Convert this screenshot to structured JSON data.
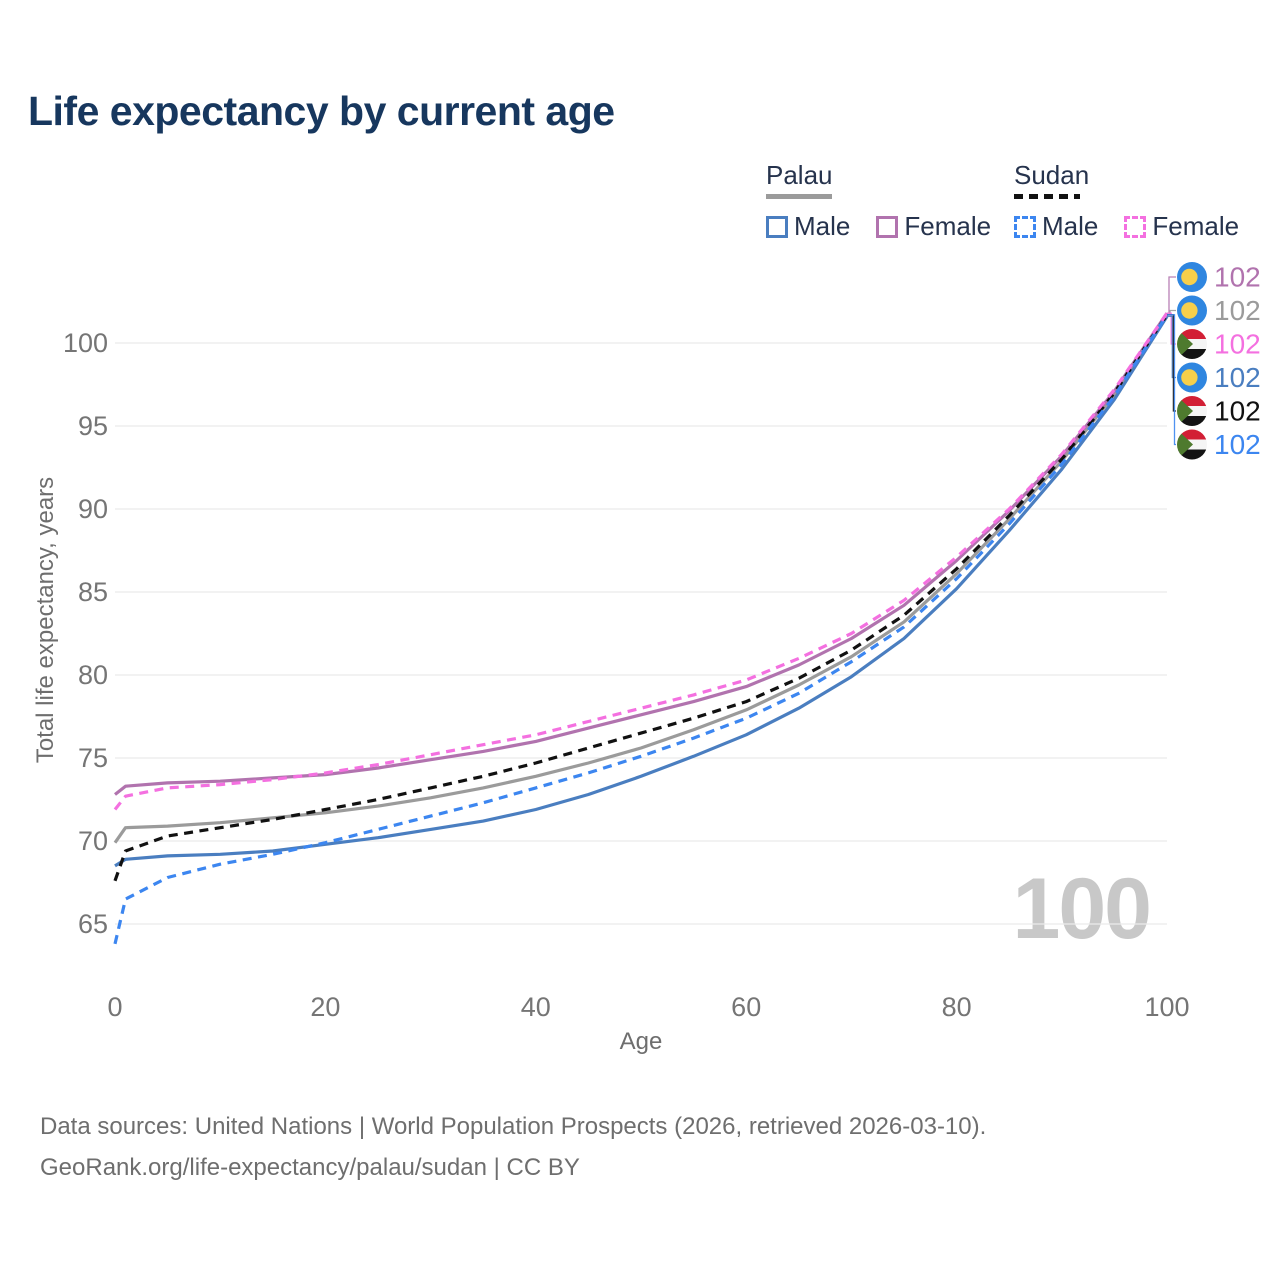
{
  "page": {
    "title": "Life expectancy by current age",
    "watermark": "100",
    "footer": [
      "Data sources: United Nations | World Population Prospects (2026, retrieved 2026-03-10).",
      "GeoRank.org/life-expectancy/palau/sudan | CC BY"
    ]
  },
  "legend": {
    "groups": [
      {
        "name": "Palau",
        "line_style": "solid",
        "underline_color": "#9b9b9b",
        "items": [
          {
            "label": "Male",
            "color": "#4a7ec0",
            "dashed": false
          },
          {
            "label": "Female",
            "color": "#b173ae",
            "dashed": false
          }
        ]
      },
      {
        "name": "Sudan",
        "line_style": "dashed",
        "underline_color": "#111111",
        "items": [
          {
            "label": "Male",
            "color": "#3c86f0",
            "dashed": true
          },
          {
            "label": "Female",
            "color": "#f470e0",
            "dashed": true
          }
        ]
      }
    ]
  },
  "chart_data": {
    "type": "line",
    "title": "Life expectancy by current age",
    "xlabel": "Age",
    "ylabel": "Total life expectancy, years",
    "xticks": [
      0,
      20,
      40,
      60,
      80,
      100
    ],
    "yticks": [
      65,
      70,
      75,
      80,
      85,
      90,
      95,
      100
    ],
    "xlim": [
      0,
      100
    ],
    "ylim": [
      63,
      103
    ],
    "grid": "horizontal-only",
    "legend_position": "top-right",
    "x": [
      0,
      1,
      5,
      10,
      15,
      20,
      25,
      30,
      35,
      40,
      45,
      50,
      55,
      60,
      65,
      70,
      75,
      80,
      85,
      90,
      95,
      100
    ],
    "series": [
      {
        "name": "Palau Both sexes",
        "country": "Palau",
        "sex": "Both",
        "color": "#9b9b9b",
        "dashed": false,
        "values": [
          69.9,
          70.8,
          70.9,
          71.1,
          71.4,
          71.7,
          72.1,
          72.6,
          73.2,
          73.9,
          74.7,
          75.6,
          76.7,
          77.9,
          79.4,
          81.1,
          83.2,
          86.1,
          89.4,
          92.9,
          96.9,
          101.7
        ]
      },
      {
        "name": "Palau Male",
        "country": "Palau",
        "sex": "Male",
        "color": "#4a7ec0",
        "dashed": false,
        "values": [
          68.5,
          68.9,
          69.1,
          69.2,
          69.4,
          69.8,
          70.2,
          70.7,
          71.2,
          71.9,
          72.8,
          73.9,
          75.1,
          76.4,
          78.0,
          79.9,
          82.2,
          85.2,
          88.7,
          92.4,
          96.6,
          101.6
        ]
      },
      {
        "name": "Palau Female",
        "country": "Palau",
        "sex": "Female",
        "color": "#b173ae",
        "dashed": false,
        "values": [
          72.8,
          73.3,
          73.5,
          73.6,
          73.8,
          74.0,
          74.4,
          74.9,
          75.4,
          76.0,
          76.8,
          77.6,
          78.4,
          79.3,
          80.6,
          82.2,
          84.2,
          86.9,
          89.9,
          93.2,
          97.1,
          101.8
        ]
      },
      {
        "name": "Sudan Both sexes",
        "country": "Sudan",
        "sex": "Both",
        "color": "#111111",
        "dashed": true,
        "values": [
          67.6,
          69.4,
          70.3,
          70.8,
          71.3,
          71.9,
          72.5,
          73.2,
          73.9,
          74.7,
          75.6,
          76.5,
          77.4,
          78.4,
          79.8,
          81.5,
          83.6,
          86.4,
          89.6,
          93.0,
          97.0,
          101.7
        ]
      },
      {
        "name": "Sudan Male",
        "country": "Sudan",
        "sex": "Male",
        "color": "#3c86f0",
        "dashed": true,
        "values": [
          63.8,
          66.5,
          67.8,
          68.6,
          69.2,
          69.9,
          70.7,
          71.5,
          72.3,
          73.2,
          74.1,
          75.1,
          76.2,
          77.4,
          78.9,
          80.8,
          82.9,
          85.8,
          89.1,
          92.7,
          96.8,
          101.7
        ]
      },
      {
        "name": "Sudan Female",
        "country": "Sudan",
        "sex": "Female",
        "color": "#f470e0",
        "dashed": true,
        "values": [
          71.9,
          72.7,
          73.2,
          73.4,
          73.7,
          74.1,
          74.6,
          75.2,
          75.8,
          76.4,
          77.2,
          78.0,
          78.8,
          79.7,
          81.0,
          82.5,
          84.5,
          87.1,
          90.0,
          93.3,
          97.2,
          101.8
        ]
      }
    ],
    "end_labels": [
      {
        "flag": "palau",
        "value": "102",
        "color": "#b173ae",
        "series": "Palau Female"
      },
      {
        "flag": "palau",
        "value": "102",
        "color": "#9b9b9b",
        "series": "Palau Both sexes"
      },
      {
        "flag": "sudan",
        "value": "102",
        "color": "#f470e0",
        "series": "Sudan Female"
      },
      {
        "flag": "palau",
        "value": "102",
        "color": "#4a7ec0",
        "series": "Palau Male"
      },
      {
        "flag": "sudan",
        "value": "102",
        "color": "#111111",
        "series": "Sudan Both sexes"
      },
      {
        "flag": "sudan",
        "value": "102",
        "color": "#3c86f0",
        "series": "Sudan Male"
      }
    ],
    "flag_colors": {
      "palau": {
        "background": "#2f86e0",
        "moon": "#f7cf4b"
      },
      "sudan": {
        "red": "#d21f35",
        "white": "#f5f5f5",
        "black": "#141414",
        "green": "#4e7a2e"
      }
    },
    "axis_text_color": "#757575",
    "gridline_color": "#eaeaea"
  }
}
